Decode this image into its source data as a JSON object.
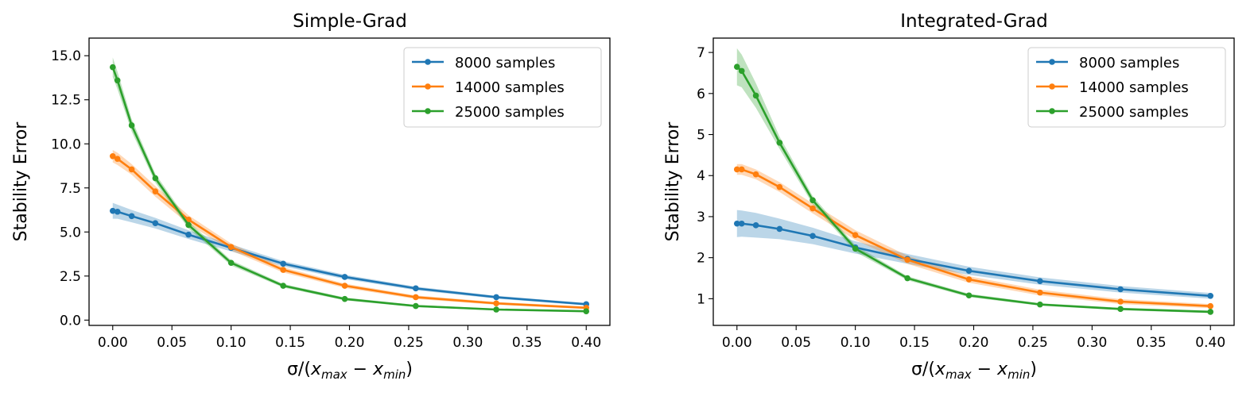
{
  "chart_data": [
    {
      "type": "line",
      "title": "Simple-Grad",
      "ylabel": "Stability Error",
      "xlabel_parts": [
        "σ/(",
        "x",
        "max",
        " − ",
        "x",
        "min",
        ")"
      ],
      "x": [
        0.0,
        0.004,
        0.016,
        0.036,
        0.064,
        0.1,
        0.144,
        0.196,
        0.256,
        0.324,
        0.4
      ],
      "xlim": [
        -0.02,
        0.42
      ],
      "ylim": [
        -0.3,
        16.0
      ],
      "xticks": [
        0.0,
        0.05,
        0.1,
        0.15,
        0.2,
        0.25,
        0.3,
        0.35,
        0.4
      ],
      "xtick_labels": [
        "0.00",
        "0.05",
        "0.10",
        "0.15",
        "0.20",
        "0.25",
        "0.30",
        "0.35",
        "0.40"
      ],
      "yticks": [
        0.0,
        2.5,
        5.0,
        7.5,
        10.0,
        12.5,
        15.0
      ],
      "ytick_labels": [
        "0.0",
        "2.5",
        "5.0",
        "7.5",
        "10.0",
        "12.5",
        "15.0"
      ],
      "legend_position": "top-right",
      "series": [
        {
          "name": "8000 samples",
          "color": "#1f77b4",
          "values": [
            6.2,
            6.15,
            5.9,
            5.5,
            4.85,
            4.1,
            3.2,
            2.45,
            1.8,
            1.3,
            0.9
          ],
          "band": [
            0.45,
            0.4,
            0.35,
            0.3,
            0.25,
            0.2,
            0.15,
            0.12,
            0.1,
            0.08,
            0.07
          ]
        },
        {
          "name": "14000 samples",
          "color": "#ff7f0e",
          "values": [
            9.3,
            9.15,
            8.55,
            7.3,
            5.7,
            4.15,
            2.85,
            1.95,
            1.3,
            0.95,
            0.7
          ],
          "band": [
            0.35,
            0.35,
            0.3,
            0.3,
            0.25,
            0.2,
            0.15,
            0.12,
            0.1,
            0.08,
            0.07
          ]
        },
        {
          "name": "25000 samples",
          "color": "#2ca02c",
          "values": [
            14.35,
            13.6,
            11.05,
            8.05,
            5.4,
            3.25,
            1.95,
            1.2,
            0.8,
            0.6,
            0.5
          ],
          "band": [
            0.55,
            0.5,
            0.35,
            0.25,
            0.2,
            0.15,
            0.1,
            0.08,
            0.06,
            0.05,
            0.04
          ]
        }
      ]
    },
    {
      "type": "line",
      "title": "Integrated-Grad",
      "ylabel": "Stability Error",
      "xlabel_parts": [
        "σ/(",
        "x",
        "max",
        " − ",
        "x",
        "min",
        ")"
      ],
      "x": [
        0.0,
        0.004,
        0.016,
        0.036,
        0.064,
        0.1,
        0.144,
        0.196,
        0.256,
        0.324,
        0.4
      ],
      "xlim": [
        -0.02,
        0.42
      ],
      "ylim": [
        0.35,
        7.35
      ],
      "xticks": [
        0.0,
        0.05,
        0.1,
        0.15,
        0.2,
        0.25,
        0.3,
        0.35,
        0.4
      ],
      "xtick_labels": [
        "0.00",
        "0.05",
        "0.10",
        "0.15",
        "0.20",
        "0.25",
        "0.30",
        "0.35",
        "0.40"
      ],
      "yticks": [
        1,
        2,
        3,
        4,
        5,
        6,
        7
      ],
      "ytick_labels": [
        "1",
        "2",
        "3",
        "4",
        "5",
        "6",
        "7"
      ],
      "legend_position": "top-right",
      "series": [
        {
          "name": "8000 samples",
          "color": "#1f77b4",
          "values": [
            2.83,
            2.83,
            2.79,
            2.7,
            2.53,
            2.25,
            1.97,
            1.68,
            1.43,
            1.23,
            1.07
          ],
          "band": [
            0.33,
            0.32,
            0.3,
            0.25,
            0.2,
            0.15,
            0.12,
            0.1,
            0.09,
            0.08,
            0.07
          ]
        },
        {
          "name": "14000 samples",
          "color": "#ff7f0e",
          "values": [
            4.15,
            4.15,
            4.03,
            3.72,
            3.2,
            2.55,
            1.95,
            1.47,
            1.15,
            0.93,
            0.82
          ],
          "band": [
            0.13,
            0.13,
            0.12,
            0.12,
            0.12,
            0.12,
            0.1,
            0.08,
            0.07,
            0.06,
            0.05
          ]
        },
        {
          "name": "25000 samples",
          "color": "#2ca02c",
          "values": [
            6.65,
            6.55,
            5.95,
            4.8,
            3.4,
            2.22,
            1.5,
            1.08,
            0.86,
            0.75,
            0.68
          ],
          "band": [
            0.45,
            0.4,
            0.3,
            0.15,
            0.1,
            0.08,
            0.05,
            0.04,
            0.03,
            0.03,
            0.03
          ]
        }
      ]
    }
  ]
}
